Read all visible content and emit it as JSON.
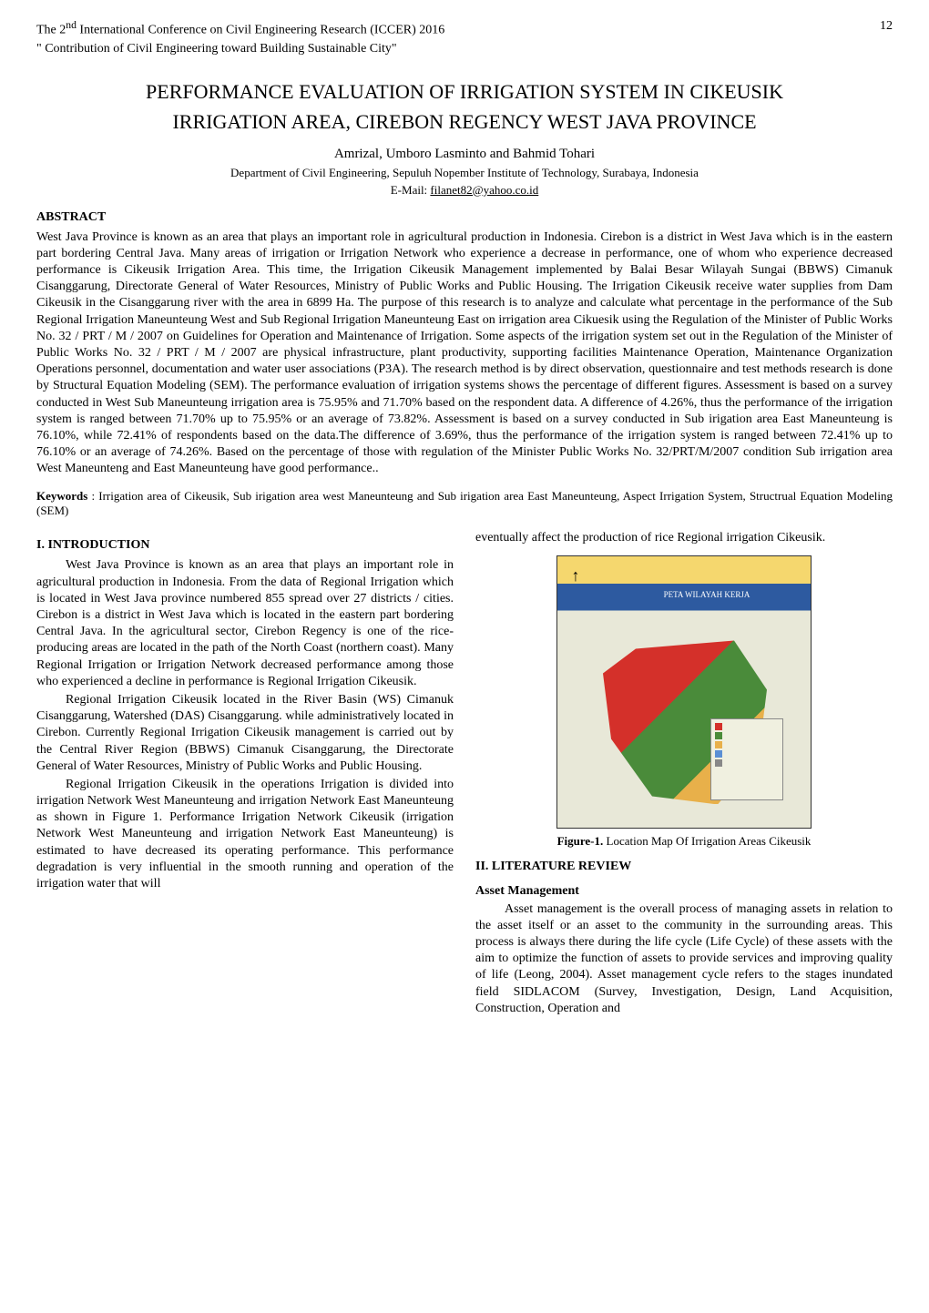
{
  "header": {
    "line1": "The 2<sup>nd</sup> International Conference on Civil Engineering Research (ICCER) 2016",
    "line1_plain": "The 2nd International Conference on Civil Engineering Research (ICCER) 2016",
    "line2": "\" Contribution of Civil Engineering toward Building Sustainable City\"",
    "page_number": "12"
  },
  "title": {
    "line1": "PERFORMANCE EVALUATION OF IRRIGATION SYSTEM IN CIKEUSIK",
    "line2": "IRRIGATION AREA, CIREBON REGENCY WEST JAVA PROVINCE"
  },
  "authors": "Amrizal, Umboro Lasminto and Bahmid Tohari",
  "affiliation": "Department of Civil Engineering, Sepuluh Nopember Institute of Technology, Surabaya, Indonesia",
  "email_prefix": "E-Mail: ",
  "email": "filanet82@yahoo.co.id",
  "abstract_heading": "ABSTRACT",
  "abstract_text": "West Java Province is known as an area that plays an important role in agricultural production in Indonesia. Cirebon is a district in West Java which is in the eastern part bordering Central Java. Many areas of irrigation or Irrigation Network who experience a decrease in performance, one of whom who experience decreased performance is Cikeusik Irrigation Area. This time, the Irrigation Cikeusik Management implemented by Balai Besar Wilayah Sungai (BBWS) Cimanuk Cisanggarung, Directorate General of Water Resources, Ministry of Public Works and Public Housing. The Irrigation Cikeusik receive water supplies from Dam Cikeusik in the Cisanggarung river with the area in 6899 Ha. The purpose of this research is to analyze and calculate what percentage in the performance of the Sub Regional Irrigation Maneunteung West and Sub Regional Irrigation Maneunteung East on irrigation area Cikuesik using the Regulation of the Minister of Public Works No. 32 / PRT / M / 2007 on Guidelines for Operation and Maintenance of Irrigation. Some aspects of the irrigation system set out in the Regulation of the Minister of Public Works No. 32 / PRT / M / 2007 are physical infrastructure, plant productivity, supporting facilities Maintenance Operation, Maintenance Organization Operations personnel, documentation and water user associations (P3A). The research method is by direct observation, questionnaire and test methods research is done by Structural Equation Modeling (SEM). The performance evaluation of irrigation systems shows the percentage of different figures. Assessment is based on a survey conducted in West Sub Maneunteung irrigation area is 75.95% and 71.70% based on the respondent data. A difference of 4.26%, thus the performance of the irrigation system is ranged between 71.70% up to 75.95% or an average of 73.82%. Assessment is based on a survey conducted in Sub irigation area East Maneunteung is 76.10%, while 72.41% of respondents based on the data.The difference of 3.69%, thus the performance of the irrigation system is ranged between 72.41% up to 76.10% or an average of 74.26%. Based on the percentage of those with regulation of the Minister Public Works No. 32/PRT/M/2007 condition Sub irrigation area West Maneunteng and East Maneunteung have good performance..",
  "keywords_label": "Keywords",
  "keywords_text": " : Irrigation area of Cikeusik, Sub irigation area west Maneunteung and Sub irigation area East Maneunteung, Aspect Irrigation System, Structrual Equation Modeling (SEM)",
  "section1_heading": "I.  INTRODUCTION",
  "intro_p1": "West Java Province is known as an area that plays an important role in agricultural production in Indonesia. From the data of Regional Irrigation which is located in West Java province numbered 855 spread over 27 districts / cities. Cirebon is a district in West Java which is located in the eastern part bordering Central Java. In the agricultural sector, Cirebon Regency is one of the rice-producing areas are located in the path of the North Coast (northern coast). Many Regional Irrigation or Irrigation Network decreased performance among those who experienced a decline in performance is Regional Irrigation Cikeusik.",
  "intro_p2": "Regional Irrigation Cikeusik located in the River Basin (WS) Cimanuk Cisanggarung, Watershed (DAS) Cisanggarung. while administratively located in Cirebon. Currently Regional Irrigation Cikeusik management is carried out by the Central River Region (BBWS) Cimanuk Cisanggarung, the Directorate General of Water Resources, Ministry of Public Works and Public Housing.",
  "intro_p3": "Regional Irrigation Cikeusik in the operations Irrigation is divided into irrigation Network West Maneunteung and irrigation Network East Maneunteung as shown in Figure 1. Performance Irrigation Network Cikeusik (irrigation Network West Maneunteung and irrigation Network East Maneunteung) is estimated to have decreased its operating performance. This performance degradation is very influential in the smooth running and operation of the irrigation water that will",
  "col2_intro_cont": "eventually affect the production of rice Regional irrigation Cikeusik.",
  "figure1": {
    "map_title": "PETA WILAYAH KERJA",
    "compass": "↑",
    "legend_items": [
      {
        "color": "#d4302a",
        "label": ""
      },
      {
        "color": "#4a8b3a",
        "label": ""
      },
      {
        "color": "#e8b04a",
        "label": ""
      },
      {
        "color": "#5b8fd4",
        "label": ""
      },
      {
        "color": "#888888",
        "label": ""
      }
    ],
    "caption_label": "Figure-1.",
    "caption_text": " Location Map Of Irrigation Areas Cikeusik",
    "colors": {
      "header_bg": "#f5d76e",
      "title_bg": "#2d5aa0",
      "map_bg": "#e8e8d8",
      "region1": "#d4302a",
      "region2": "#4a8b3a",
      "region3": "#e8b04a"
    }
  },
  "section2_heading": "II.  LITERATURE REVIEW",
  "subsection2_1": "Asset Management",
  "lit_p1": "Asset management is the overall process of managing assets in relation to the asset itself or an asset to the community in the surrounding areas. This process is always there during the life cycle (Life Cycle) of these assets with the aim to optimize the function of assets to provide services and improving quality of life (Leong, 2004). Asset management cycle refers to the stages inundated field SIDLACOM (Survey, Investigation, Design, Land Acquisition, Construction, Operation and"
}
